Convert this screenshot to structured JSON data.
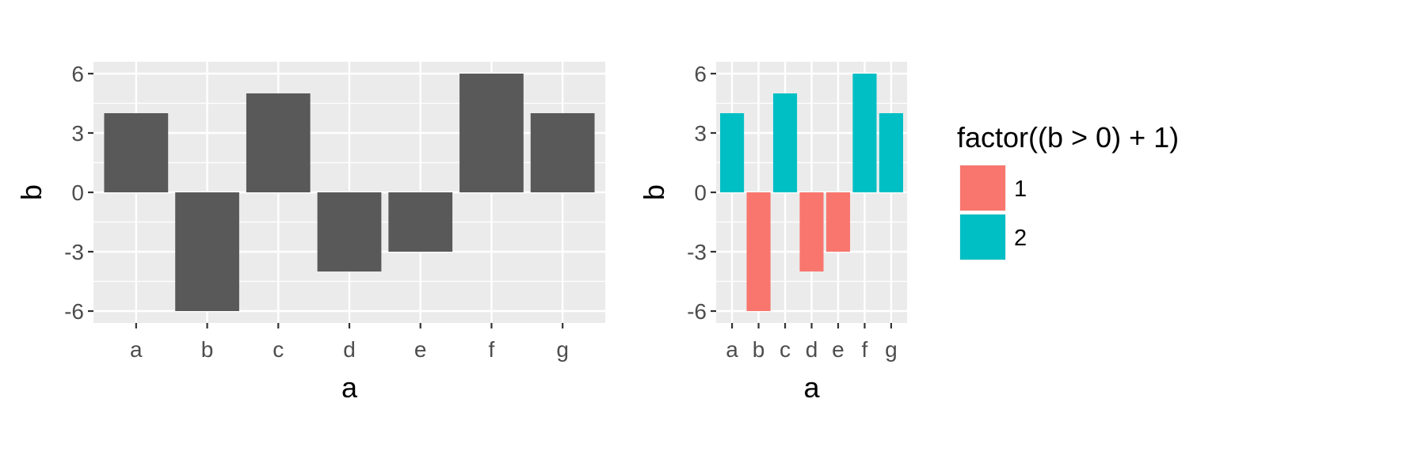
{
  "chart_data": [
    {
      "type": "bar",
      "categories": [
        "a",
        "b",
        "c",
        "d",
        "e",
        "f",
        "g"
      ],
      "values": [
        4,
        -6,
        5,
        -4,
        -3,
        6,
        4
      ],
      "xlabel": "a",
      "ylabel": "b",
      "ylim": [
        -6.6,
        6.6
      ],
      "yticks": [
        -6,
        -3,
        0,
        3,
        6
      ],
      "ytick_labels": [
        "-6",
        "-3",
        "0",
        "3",
        "6"
      ],
      "grid": true,
      "panel_background": "#ebebeb",
      "bar_color": "#595959"
    },
    {
      "type": "bar",
      "categories": [
        "a",
        "b",
        "c",
        "d",
        "e",
        "f",
        "g"
      ],
      "values": [
        4,
        -6,
        5,
        -4,
        -3,
        6,
        4
      ],
      "groups": [
        "2",
        "1",
        "2",
        "1",
        "1",
        "2",
        "2"
      ],
      "xlabel": "a",
      "ylabel": "b",
      "ylim": [
        -6.6,
        6.6
      ],
      "yticks": [
        -6,
        -3,
        0,
        3,
        6
      ],
      "ytick_labels": [
        "-6",
        "-3",
        "0",
        "3",
        "6"
      ],
      "grid": true,
      "panel_background": "#ebebeb",
      "legend": {
        "title": "factor((b > 0) + 1)",
        "placement": "right",
        "entries": [
          {
            "label": "1",
            "color": "#F8766D"
          },
          {
            "label": "2",
            "color": "#00BFC4"
          }
        ]
      }
    }
  ]
}
